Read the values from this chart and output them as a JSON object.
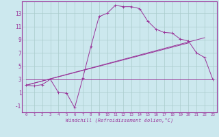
{
  "xlabel": "Windchill (Refroidissement éolien,°C)",
  "bg_color": "#cce8ee",
  "line_color": "#993399",
  "grid_color": "#aacccc",
  "xlim": [
    -0.5,
    23.5
  ],
  "ylim": [
    -2.0,
    14.8
  ],
  "xticks": [
    0,
    1,
    2,
    3,
    4,
    5,
    6,
    7,
    8,
    9,
    10,
    11,
    12,
    13,
    14,
    15,
    16,
    17,
    18,
    19,
    20,
    21,
    22,
    23
  ],
  "yticks": [
    -1,
    1,
    3,
    5,
    7,
    9,
    11,
    13
  ],
  "curve1_x": [
    0,
    1,
    2,
    3,
    4,
    5,
    6,
    7,
    8,
    9,
    10,
    11,
    12,
    13,
    14,
    15,
    16,
    17,
    18,
    19,
    20,
    21,
    22,
    23
  ],
  "curve1_y": [
    2.1,
    2.0,
    2.2,
    3.0,
    1.0,
    0.9,
    -1.3,
    3.2,
    8.0,
    12.5,
    13.0,
    14.2,
    14.0,
    14.0,
    13.7,
    11.8,
    10.6,
    10.1,
    10.0,
    9.1,
    8.8,
    7.0,
    6.3,
    3.0
  ],
  "line2_x": [
    0,
    23
  ],
  "line2_y": [
    3.0,
    3.0
  ],
  "line3_x": [
    0,
    22
  ],
  "line3_y": [
    2.1,
    9.3
  ],
  "line4_x": [
    0,
    20
  ],
  "line4_y": [
    2.1,
    8.5
  ]
}
